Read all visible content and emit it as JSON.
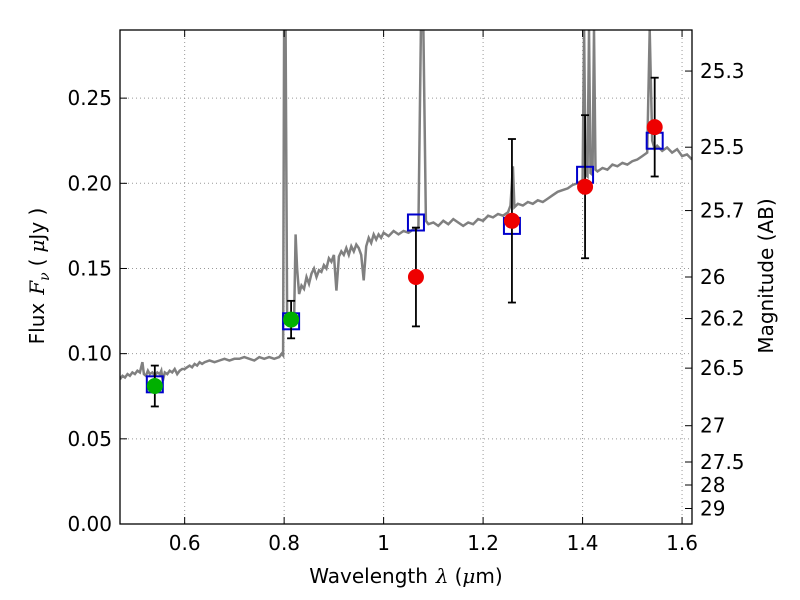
{
  "chart_data": {
    "type": "scatter",
    "title": "",
    "xlabel": {
      "pre": "Wavelength",
      "sym": "λ",
      "unit_open": "(",
      "unit_mu": "μ",
      "unit_rest": "m)"
    },
    "ylabel": {
      "pre": "Flux",
      "sym": "F",
      "sub": "ν",
      "unit_open": "(",
      "unit_mu": "μ",
      "unit_rest": "Jy )"
    },
    "y2label": "Magnitude (AB)",
    "xlim": [
      0.47,
      1.62
    ],
    "ylim": [
      0.0,
      0.29
    ],
    "grid": true,
    "x_ticks": [
      {
        "value": 0.6,
        "label": "0.6"
      },
      {
        "value": 0.8,
        "label": "0.8"
      },
      {
        "value": 1.0,
        "label": "1"
      },
      {
        "value": 1.2,
        "label": "1.2"
      },
      {
        "value": 1.4,
        "label": "1.4"
      },
      {
        "value": 1.6,
        "label": "1.6"
      }
    ],
    "y_ticks": [
      {
        "value": 0.0,
        "label": "0.00"
      },
      {
        "value": 0.05,
        "label": "0.05"
      },
      {
        "value": 0.1,
        "label": "0.10"
      },
      {
        "value": 0.15,
        "label": "0.15"
      },
      {
        "value": 0.2,
        "label": "0.20"
      },
      {
        "value": 0.25,
        "label": "0.25"
      }
    ],
    "y2_ticks": [
      {
        "flux": 0.2659,
        "label": "25.3"
      },
      {
        "flux": 0.2212,
        "label": "25.5"
      },
      {
        "flux": 0.184,
        "label": "25.7"
      },
      {
        "flux": 0.145,
        "label": "26"
      },
      {
        "flux": 0.1206,
        "label": "26.2"
      },
      {
        "flux": 0.0915,
        "label": "26.5"
      },
      {
        "flux": 0.0577,
        "label": "27"
      },
      {
        "flux": 0.0364,
        "label": "27.5"
      },
      {
        "flux": 0.0229,
        "label": "28"
      },
      {
        "flux": 0.0091,
        "label": "29"
      }
    ],
    "colors": {
      "model": "#808080",
      "model_phot": "#0000cc",
      "obs_green": "#00b000",
      "obs_red": "#ee0000",
      "errorbar": "#000000",
      "grid": "#999999"
    },
    "model_spectrum": [
      [
        0.47,
        0.085
      ],
      [
        0.475,
        0.087
      ],
      [
        0.48,
        0.086
      ],
      [
        0.485,
        0.088
      ],
      [
        0.49,
        0.087
      ],
      [
        0.495,
        0.089
      ],
      [
        0.5,
        0.088
      ],
      [
        0.505,
        0.09
      ],
      [
        0.51,
        0.089
      ],
      [
        0.515,
        0.095
      ],
      [
        0.518,
        0.088
      ],
      [
        0.522,
        0.087
      ],
      [
        0.526,
        0.09
      ],
      [
        0.53,
        0.088
      ],
      [
        0.535,
        0.089
      ],
      [
        0.54,
        0.087
      ],
      [
        0.545,
        0.089
      ],
      [
        0.55,
        0.088
      ],
      [
        0.553,
        0.09
      ],
      [
        0.556,
        0.084
      ],
      [
        0.56,
        0.089
      ],
      [
        0.565,
        0.088
      ],
      [
        0.57,
        0.09
      ],
      [
        0.575,
        0.089
      ],
      [
        0.58,
        0.091
      ],
      [
        0.585,
        0.088
      ],
      [
        0.59,
        0.09
      ],
      [
        0.595,
        0.091
      ],
      [
        0.6,
        0.091
      ],
      [
        0.605,
        0.092
      ],
      [
        0.61,
        0.093
      ],
      [
        0.615,
        0.092
      ],
      [
        0.62,
        0.094
      ],
      [
        0.625,
        0.093
      ],
      [
        0.63,
        0.095
      ],
      [
        0.635,
        0.094
      ],
      [
        0.64,
        0.095
      ],
      [
        0.65,
        0.096
      ],
      [
        0.66,
        0.095
      ],
      [
        0.67,
        0.096
      ],
      [
        0.68,
        0.097
      ],
      [
        0.69,
        0.096
      ],
      [
        0.7,
        0.097
      ],
      [
        0.71,
        0.097
      ],
      [
        0.72,
        0.098
      ],
      [
        0.73,
        0.097
      ],
      [
        0.74,
        0.096
      ],
      [
        0.75,
        0.098
      ],
      [
        0.76,
        0.097
      ],
      [
        0.77,
        0.098
      ],
      [
        0.78,
        0.097
      ],
      [
        0.79,
        0.098
      ],
      [
        0.795,
        0.1
      ],
      [
        0.798,
        0.099
      ],
      [
        0.8,
        0.29
      ],
      [
        0.803,
        0.29
      ],
      [
        0.806,
        0.125
      ],
      [
        0.81,
        0.119
      ],
      [
        0.815,
        0.118
      ],
      [
        0.82,
        0.12
      ],
      [
        0.823,
        0.17
      ],
      [
        0.826,
        0.15
      ],
      [
        0.83,
        0.135
      ],
      [
        0.835,
        0.14
      ],
      [
        0.84,
        0.138
      ],
      [
        0.845,
        0.145
      ],
      [
        0.85,
        0.141
      ],
      [
        0.855,
        0.147
      ],
      [
        0.86,
        0.15
      ],
      [
        0.865,
        0.145
      ],
      [
        0.87,
        0.149
      ],
      [
        0.875,
        0.148
      ],
      [
        0.88,
        0.152
      ],
      [
        0.885,
        0.15
      ],
      [
        0.89,
        0.156
      ],
      [
        0.895,
        0.154
      ],
      [
        0.9,
        0.158
      ],
      [
        0.905,
        0.137
      ],
      [
        0.91,
        0.157
      ],
      [
        0.915,
        0.16
      ],
      [
        0.92,
        0.158
      ],
      [
        0.925,
        0.162
      ],
      [
        0.93,
        0.158
      ],
      [
        0.935,
        0.163
      ],
      [
        0.94,
        0.16
      ],
      [
        0.945,
        0.164
      ],
      [
        0.95,
        0.162
      ],
      [
        0.955,
        0.158
      ],
      [
        0.96,
        0.143
      ],
      [
        0.965,
        0.163
      ],
      [
        0.97,
        0.168
      ],
      [
        0.975,
        0.165
      ],
      [
        0.98,
        0.17
      ],
      [
        0.985,
        0.167
      ],
      [
        0.99,
        0.17
      ],
      [
        0.995,
        0.168
      ],
      [
        1.0,
        0.171
      ],
      [
        1.01,
        0.169
      ],
      [
        1.02,
        0.172
      ],
      [
        1.03,
        0.17
      ],
      [
        1.04,
        0.172
      ],
      [
        1.05,
        0.171
      ],
      [
        1.06,
        0.173
      ],
      [
        1.07,
        0.174
      ],
      [
        1.075,
        0.29
      ],
      [
        1.08,
        0.29
      ],
      [
        1.085,
        0.178
      ],
      [
        1.09,
        0.176
      ],
      [
        1.1,
        0.177
      ],
      [
        1.11,
        0.175
      ],
      [
        1.12,
        0.178
      ],
      [
        1.13,
        0.176
      ],
      [
        1.14,
        0.179
      ],
      [
        1.15,
        0.177
      ],
      [
        1.16,
        0.175
      ],
      [
        1.17,
        0.177
      ],
      [
        1.18,
        0.176
      ],
      [
        1.19,
        0.179
      ],
      [
        1.2,
        0.178
      ],
      [
        1.21,
        0.181
      ],
      [
        1.22,
        0.18
      ],
      [
        1.23,
        0.182
      ],
      [
        1.24,
        0.181
      ],
      [
        1.25,
        0.183
      ],
      [
        1.255,
        0.187
      ],
      [
        1.26,
        0.21
      ],
      [
        1.263,
        0.186
      ],
      [
        1.27,
        0.188
      ],
      [
        1.28,
        0.187
      ],
      [
        1.29,
        0.189
      ],
      [
        1.3,
        0.188
      ],
      [
        1.31,
        0.19
      ],
      [
        1.32,
        0.189
      ],
      [
        1.33,
        0.191
      ],
      [
        1.34,
        0.193
      ],
      [
        1.35,
        0.195
      ],
      [
        1.36,
        0.196
      ],
      [
        1.37,
        0.197
      ],
      [
        1.38,
        0.199
      ],
      [
        1.39,
        0.2
      ],
      [
        1.4,
        0.202
      ],
      [
        1.403,
        0.29
      ],
      [
        1.406,
        0.205
      ],
      [
        1.41,
        0.204
      ],
      [
        1.413,
        0.29
      ],
      [
        1.416,
        0.206
      ],
      [
        1.42,
        0.205
      ],
      [
        1.423,
        0.29
      ],
      [
        1.426,
        0.208
      ],
      [
        1.43,
        0.207
      ],
      [
        1.44,
        0.209
      ],
      [
        1.45,
        0.208
      ],
      [
        1.46,
        0.211
      ],
      [
        1.47,
        0.21
      ],
      [
        1.48,
        0.212
      ],
      [
        1.49,
        0.211
      ],
      [
        1.5,
        0.213
      ],
      [
        1.51,
        0.214
      ],
      [
        1.52,
        0.216
      ],
      [
        1.53,
        0.218
      ],
      [
        1.535,
        0.29
      ],
      [
        1.54,
        0.225
      ],
      [
        1.545,
        0.22
      ],
      [
        1.55,
        0.222
      ],
      [
        1.56,
        0.219
      ],
      [
        1.57,
        0.221
      ],
      [
        1.58,
        0.218
      ],
      [
        1.59,
        0.22
      ],
      [
        1.6,
        0.216
      ],
      [
        1.61,
        0.217
      ],
      [
        1.62,
        0.214
      ]
    ],
    "model_photometry": [
      {
        "x": 0.54,
        "y": 0.082
      },
      {
        "x": 0.814,
        "y": 0.119
      },
      {
        "x": 1.065,
        "y": 0.177
      },
      {
        "x": 1.258,
        "y": 0.175
      },
      {
        "x": 1.405,
        "y": 0.205
      },
      {
        "x": 1.545,
        "y": 0.225
      }
    ],
    "observed": [
      {
        "x": 0.54,
        "y": 0.081,
        "yerr": 0.012,
        "color": "green"
      },
      {
        "x": 0.814,
        "y": 0.12,
        "yerr": 0.011,
        "color": "green"
      },
      {
        "x": 1.065,
        "y": 0.145,
        "yerr": 0.029,
        "color": "red"
      },
      {
        "x": 1.258,
        "y": 0.178,
        "yerr": 0.048,
        "color": "red"
      },
      {
        "x": 1.405,
        "y": 0.198,
        "yerr": 0.042,
        "color": "red"
      },
      {
        "x": 1.545,
        "y": 0.233,
        "yerr": 0.029,
        "color": "red"
      }
    ]
  }
}
